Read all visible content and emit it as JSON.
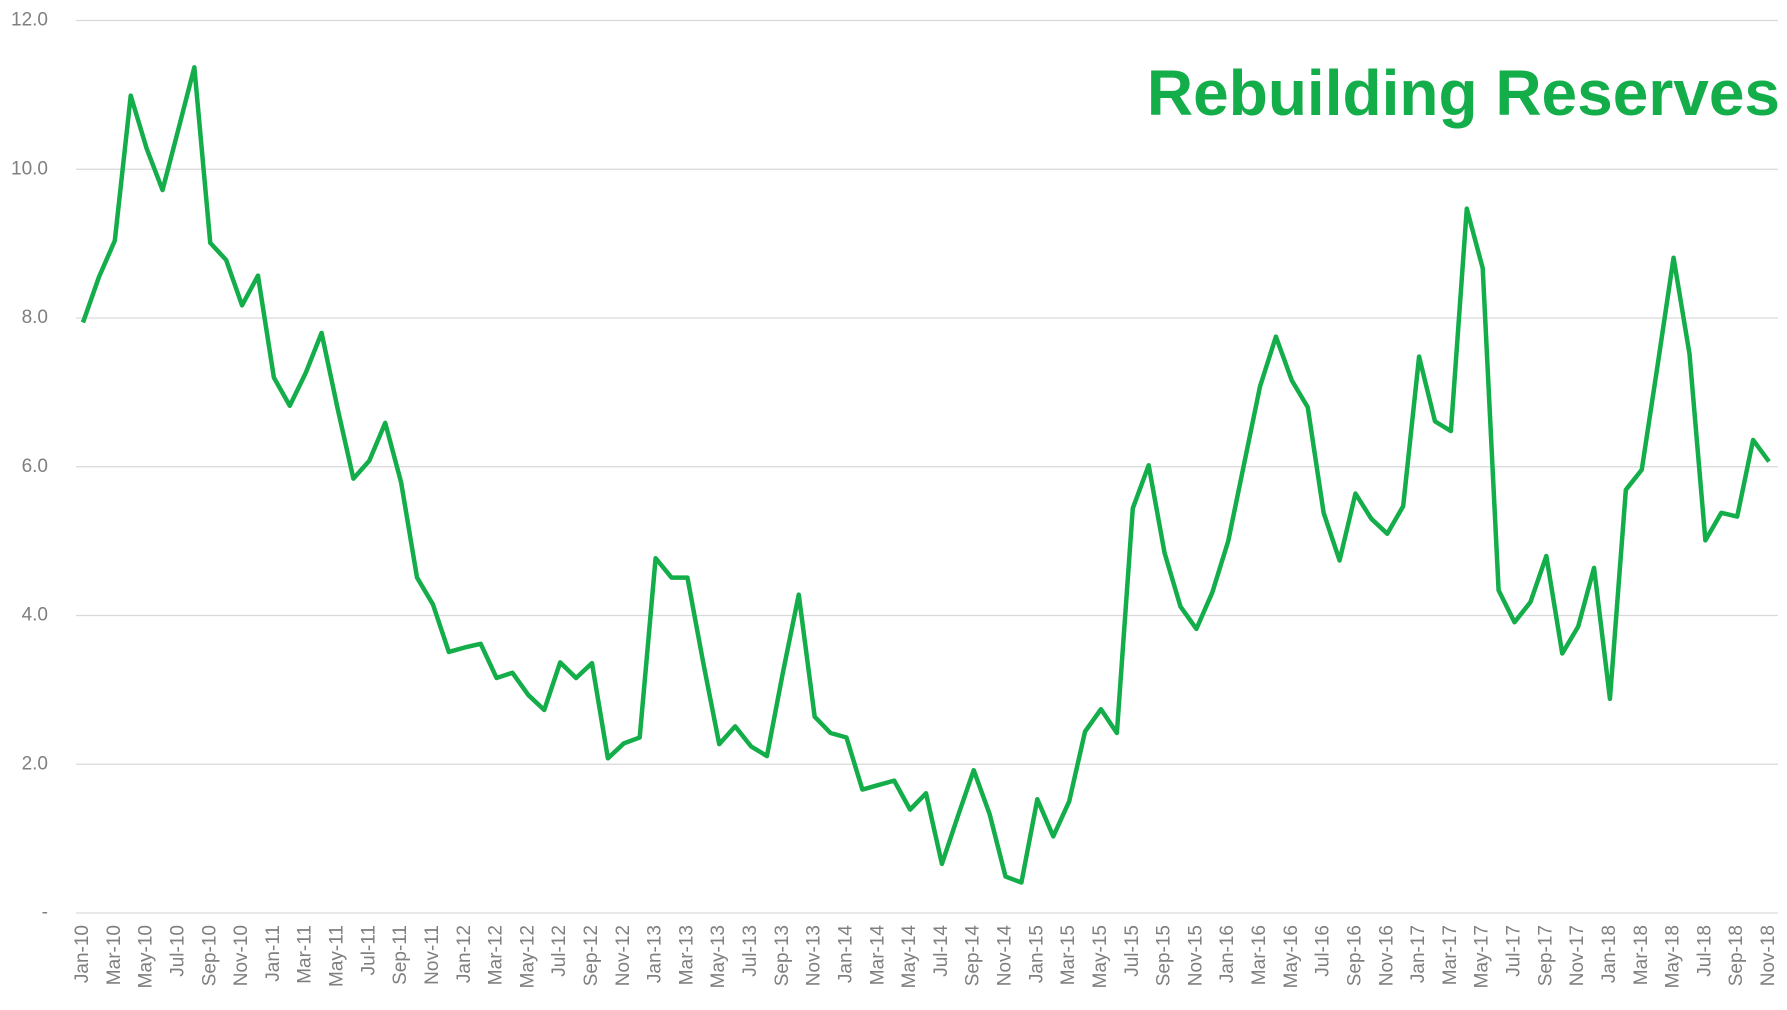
{
  "chart_data": {
    "type": "line",
    "title": "Rebuilding Reserves",
    "categories": [
      "Jan-10",
      null,
      "Mar-10",
      null,
      "May-10",
      null,
      "Jul-10",
      null,
      "Sep-10",
      null,
      "Nov-10",
      null,
      "Jan-11",
      null,
      "Mar-11",
      null,
      "May-11",
      null,
      "Jul-11",
      null,
      "Sep-11",
      null,
      "Nov-11",
      null,
      "Jan-12",
      null,
      "Mar-12",
      null,
      "May-12",
      null,
      "Jul-12",
      null,
      "Sep-12",
      null,
      "Nov-12",
      null,
      "Jan-13",
      null,
      "Mar-13",
      null,
      "May-13",
      null,
      "Jul-13",
      null,
      "Sep-13",
      null,
      "Nov-13",
      null,
      "Jan-14",
      null,
      "Mar-14",
      null,
      "May-14",
      null,
      "Jul-14",
      null,
      "Sep-14",
      null,
      "Nov-14",
      null,
      "Jan-15",
      null,
      "Mar-15",
      null,
      "May-15",
      null,
      "Jul-15",
      null,
      "Sep-15",
      null,
      "Nov-15",
      null,
      "Jan-16",
      null,
      "Mar-16",
      null,
      "May-16",
      null,
      "Jul-16",
      null,
      "Sep-16",
      null,
      "Nov-16",
      null,
      "Jan-17",
      null,
      "Mar-17",
      null,
      "May-17",
      null,
      "Jul-17",
      null,
      "Sep-17",
      null,
      "Nov-17",
      null,
      "Jan-18",
      null,
      "Mar-18",
      null,
      "May-18",
      null,
      "Jul-18",
      null,
      "Sep-18",
      null,
      "Nov-18"
    ],
    "values": [
      7.94,
      8.55,
      9.04,
      10.99,
      10.28,
      9.72,
      10.54,
      11.37,
      9.01,
      8.78,
      8.17,
      8.57,
      7.2,
      6.82,
      7.26,
      7.8,
      6.79,
      5.84,
      6.08,
      6.59,
      5.79,
      4.51,
      4.15,
      3.51,
      3.57,
      3.62,
      3.16,
      3.23,
      2.93,
      2.73,
      3.37,
      3.16,
      3.36,
      2.08,
      2.28,
      2.36,
      4.77,
      4.51,
      4.51,
      3.36,
      2.27,
      2.51,
      2.24,
      2.11,
      3.23,
      4.28,
      2.64,
      2.42,
      2.36,
      1.66,
      1.72,
      1.78,
      1.39,
      1.61,
      0.66,
      1.3,
      1.92,
      1.33,
      0.49,
      0.41,
      1.53,
      1.03,
      1.5,
      2.44,
      2.74,
      2.42,
      5.44,
      6.02,
      4.84,
      4.12,
      3.82,
      4.31,
      5.0,
      6.04,
      7.08,
      7.75,
      7.16,
      6.8,
      5.38,
      4.74,
      5.64,
      5.3,
      5.1,
      5.47,
      7.48,
      6.61,
      6.48,
      9.47,
      8.67,
      4.34,
      3.91,
      4.18,
      4.8,
      3.49,
      3.85,
      4.64,
      2.88,
      5.69,
      5.96,
      7.37,
      8.81,
      7.52,
      5.01,
      5.38,
      5.33,
      6.36,
      6.07
    ],
    "color": "#13ad4a",
    "ylim": [
      0,
      12
    ],
    "yticks": [
      {
        "value": 0,
        "label": "-"
      },
      {
        "value": 2,
        "label": "2.0"
      },
      {
        "value": 4,
        "label": "4.0"
      },
      {
        "value": 6,
        "label": "6.0"
      },
      {
        "value": 8,
        "label": "8.0"
      },
      {
        "value": 10,
        "label": "10.0"
      },
      {
        "value": 12,
        "label": "12.0"
      }
    ],
    "grid": true
  }
}
